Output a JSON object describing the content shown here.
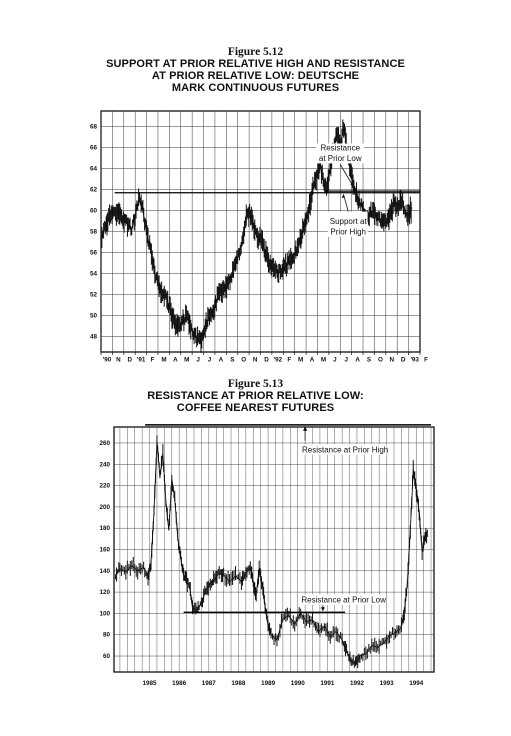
{
  "chart_data": [
    {
      "type": "line",
      "figure_label": "Figure 5.12",
      "title": "SUPPORT AT PRIOR RELATIVE HIGH AND RESISTANCE AT PRIOR RELATIVE LOW: DEUTSCHE MARK CONTINUOUS FUTURES",
      "title_lines": [
        "SUPPORT AT PRIOR RELATIVE HIGH AND RESISTANCE",
        "AT PRIOR RELATIVE LOW: DEUTSCHE",
        "MARK CONTINUOUS FUTURES"
      ],
      "x_tick_labels": [
        "'90",
        "N",
        "D",
        "'91",
        "F",
        "M",
        "A",
        "M",
        "J",
        "J",
        "A",
        "S",
        "O",
        "N",
        "D",
        "'92",
        "F",
        "M",
        "A",
        "M",
        "J",
        "J",
        "A",
        "S",
        "O",
        "N",
        "D",
        "'93",
        "F"
      ],
      "y_tick_labels": [
        "48",
        "50",
        "52",
        "54",
        "56",
        "58",
        "60",
        "62",
        "64",
        "66",
        "68"
      ],
      "ylim": [
        46.5,
        69.5
      ],
      "grid": true,
      "x_index_range": [
        0,
        28
      ],
      "series": [
        {
          "x": [
            0,
            0.3,
            0.6,
            0.9,
            1.2,
            1.5,
            1.8,
            2.1,
            2.4,
            2.7,
            3.0,
            3.3,
            3.6,
            3.9,
            4.2,
            4.5,
            4.8,
            5.1,
            5.4,
            5.7,
            6.0,
            6.3,
            6.6,
            6.9,
            7.2,
            7.5,
            7.8,
            8.1,
            8.4,
            8.7,
            9.0,
            9.3,
            9.6,
            9.9,
            10.2,
            10.5,
            10.8,
            11.1,
            11.4,
            11.7,
            12.0,
            12.3,
            12.6,
            12.9,
            13.2,
            13.5,
            13.8,
            14.1,
            14.4,
            14.7,
            15.0,
            15.3,
            15.6,
            15.9,
            16.2,
            16.5,
            16.8,
            17.1,
            17.4,
            17.7,
            18.0,
            18.3,
            18.6,
            18.9,
            19.2,
            19.5,
            19.8,
            20.1,
            20.4,
            20.7,
            21.0,
            21.3,
            21.6,
            21.9,
            22.2,
            22.5,
            22.8,
            23.1,
            23.4,
            23.7,
            24.0,
            24.3,
            24.6,
            24.9,
            25.2,
            25.5,
            25.8,
            26.1,
            26.4,
            26.7,
            27.0,
            27.3
          ],
          "y": [
            57.3,
            58.2,
            59.0,
            59.8,
            59.6,
            60.0,
            59.5,
            59.0,
            58.6,
            58.2,
            59.5,
            61.0,
            60.6,
            58.5,
            57.0,
            55.5,
            53.7,
            52.8,
            52.0,
            51.8,
            50.8,
            49.8,
            49.1,
            48.8,
            49.5,
            50.0,
            49.0,
            48.2,
            47.8,
            47.5,
            48.5,
            49.5,
            50.0,
            50.6,
            51.6,
            52.5,
            52.2,
            52.8,
            53.5,
            54.5,
            55.5,
            56.5,
            58.5,
            59.8,
            59.5,
            58.0,
            57.2,
            57.5,
            56.0,
            55.2,
            54.5,
            54.3,
            54.0,
            54.4,
            54.6,
            55.0,
            55.3,
            56.0,
            57.0,
            58.0,
            59.0,
            60.5,
            62.0,
            63.3,
            64.5,
            63.0,
            62.0,
            64.0,
            65.8,
            67.5,
            66.3,
            68.0,
            65.8,
            63.8,
            62.3,
            61.3,
            60.5,
            60.0,
            59.3,
            59.8,
            60.0,
            59.2,
            59.0,
            58.8,
            59.0,
            60.0,
            60.8,
            60.5,
            61.0,
            60.0,
            59.5,
            60.3
          ]
        }
      ],
      "reference_lines": [
        {
          "y": 61.7,
          "x_from": 1.2,
          "x_to": 28
        },
        {
          "y": 61.85,
          "x_from": 19.6,
          "x_to": 28
        }
      ],
      "annotations": [
        {
          "text_lines": [
            "Resistance",
            "at Prior Low"
          ]
        },
        {
          "text_lines": [
            "Support at",
            "Prior High"
          ]
        }
      ]
    },
    {
      "type": "line",
      "figure_label": "Figure 5.13",
      "title": "RESISTANCE AT PRIOR RELATIVE LOW: COFFEE NEAREST FUTURES",
      "title_lines": [
        "RESISTANCE AT PRIOR RELATIVE LOW:",
        "COFFEE NEAREST FUTURES"
      ],
      "x_tick_labels": [
        "1985",
        "1986",
        "1987",
        "1988",
        "1989",
        "1990",
        "1991",
        "1992",
        "1993",
        "1994"
      ],
      "y_tick_labels": [
        "60",
        "80",
        "100",
        "120",
        "140",
        "160",
        "180",
        "200",
        "220",
        "240",
        "260"
      ],
      "ylim": [
        45,
        275
      ],
      "grid": true,
      "x_range": [
        1984.3,
        1995.1
      ],
      "series": [
        {
          "x": [
            1984.35,
            1984.5,
            1984.7,
            1984.9,
            1985.1,
            1985.3,
            1985.45,
            1985.55,
            1985.65,
            1985.75,
            1985.85,
            1985.95,
            1986.05,
            1986.15,
            1986.25,
            1986.35,
            1986.45,
            1986.55,
            1986.65,
            1986.75,
            1986.85,
            1986.95,
            1987.1,
            1987.25,
            1987.4,
            1987.55,
            1987.7,
            1987.85,
            1988.0,
            1988.2,
            1988.4,
            1988.6,
            1988.75,
            1988.9,
            1989.0,
            1989.1,
            1989.2,
            1989.3,
            1989.4,
            1989.5,
            1989.6,
            1989.8,
            1990.0,
            1990.2,
            1990.4,
            1990.6,
            1990.8,
            1991.0,
            1991.2,
            1991.4,
            1991.6,
            1991.8,
            1992.0,
            1992.15,
            1992.3,
            1992.45,
            1992.6,
            1992.8,
            1993.0,
            1993.2,
            1993.4,
            1993.6,
            1993.8,
            1994.0,
            1994.1,
            1994.2,
            1994.3,
            1994.4,
            1994.5,
            1994.6,
            1994.7,
            1994.8,
            1994.9
          ],
          "y": [
            136,
            142,
            139,
            145,
            140,
            143,
            136,
            148,
            195,
            262,
            228,
            250,
            205,
            178,
            226,
            208,
            172,
            152,
            136,
            130,
            126,
            105,
            103,
            110,
            122,
            128,
            132,
            138,
            136,
            130,
            135,
            130,
            138,
            142,
            130,
            118,
            142,
            128,
            106,
            88,
            80,
            75,
            95,
            98,
            90,
            100,
            92,
            94,
            83,
            88,
            78,
            83,
            75,
            65,
            55,
            53,
            60,
            62,
            70,
            68,
            72,
            79,
            82,
            87,
            102,
            128,
            178,
            235,
            218,
            195,
            158,
            175,
            172
          ]
        }
      ],
      "reference_lines": [
        {
          "y": 277,
          "x_from": 1985.35,
          "x_to": 1995.0
        },
        {
          "y": 101,
          "x_from": 1986.65,
          "x_to": 1992.1
        }
      ],
      "annotations": [
        {
          "text_lines": [
            "Resistance at Prior High"
          ]
        },
        {
          "text_lines": [
            "Resistance at Prior Low"
          ]
        }
      ]
    }
  ]
}
